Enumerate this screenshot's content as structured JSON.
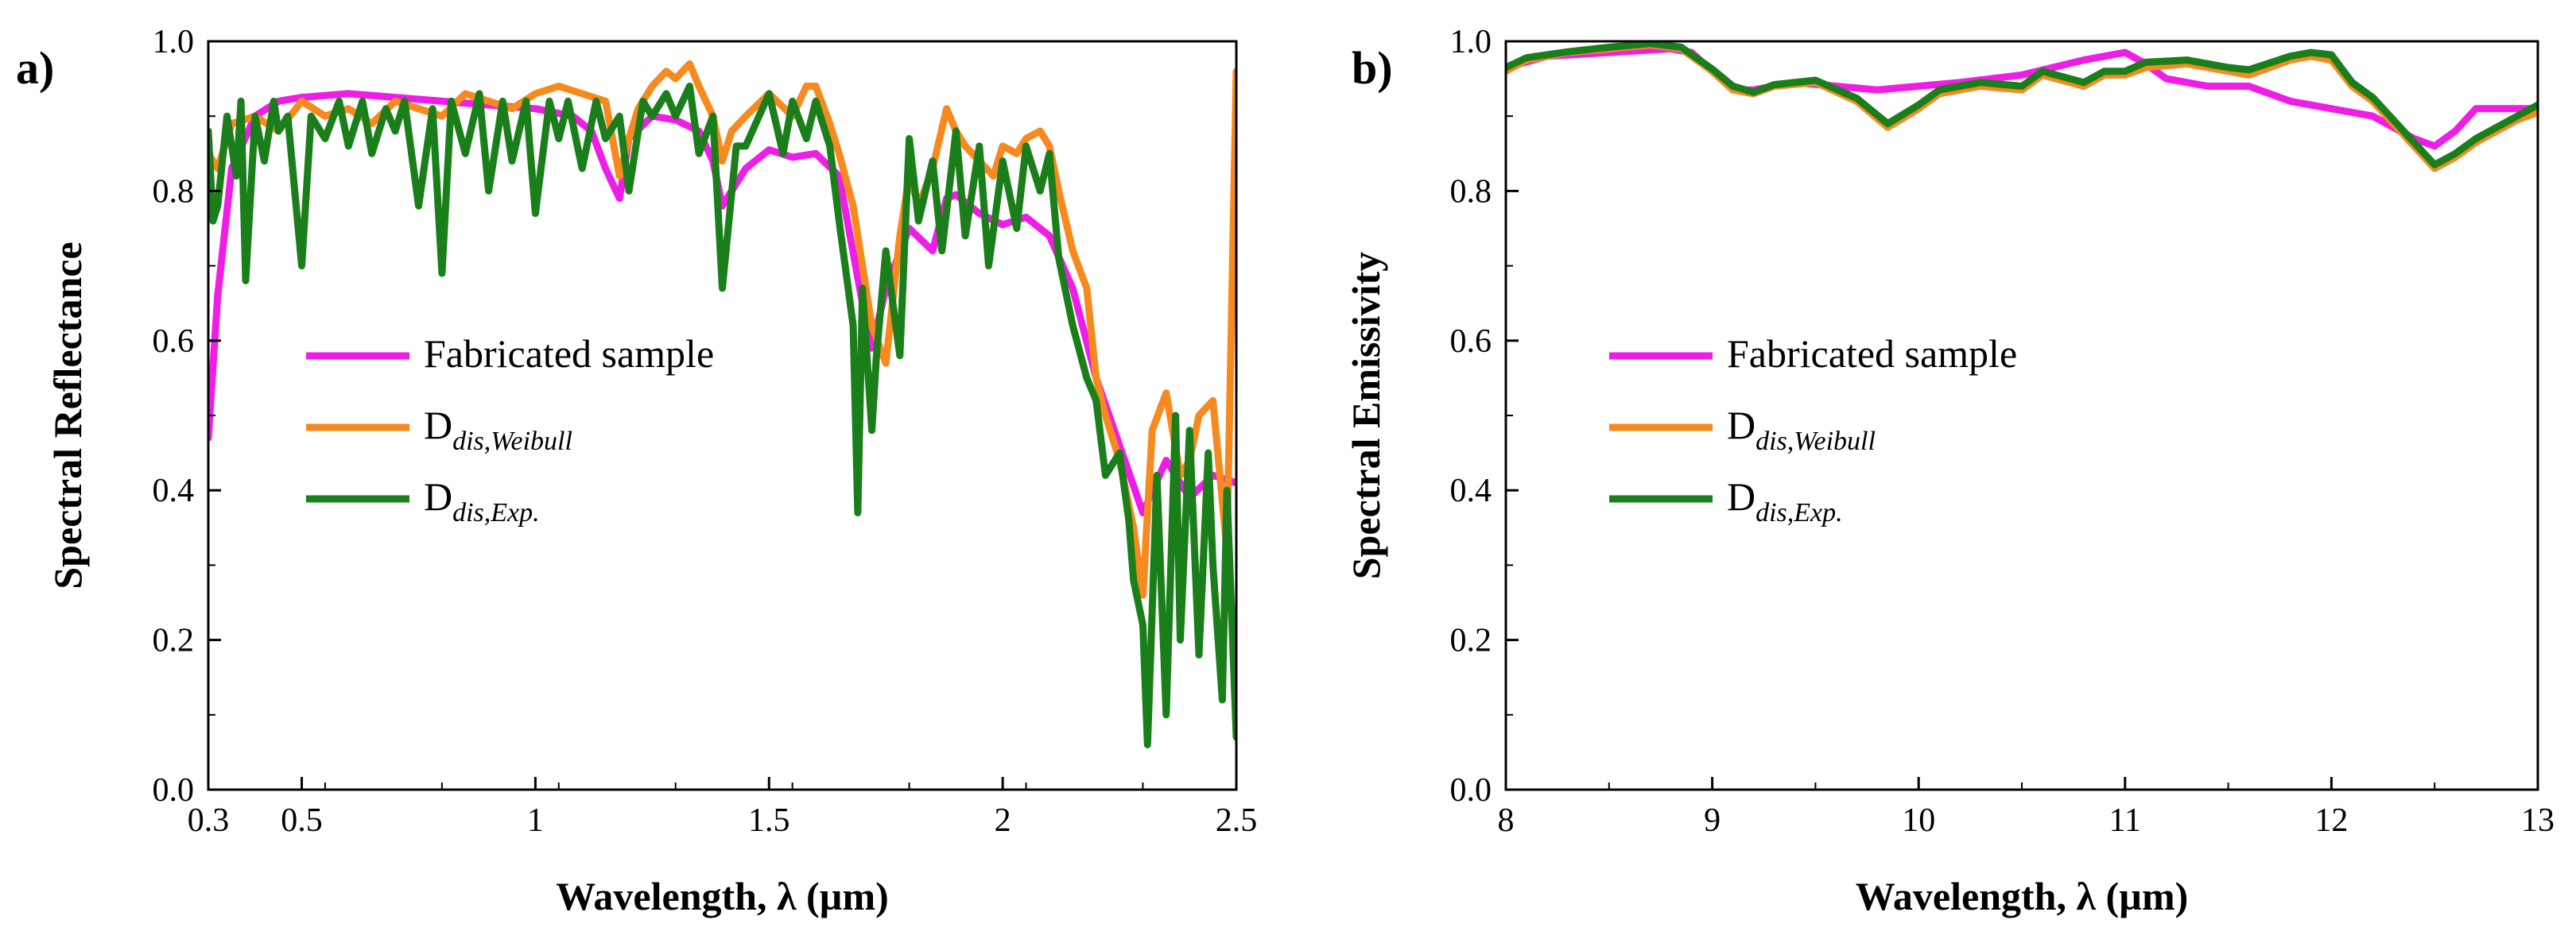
{
  "chart_data": [
    {
      "type": "line",
      "panel_label": "a)",
      "xlabel": "Wavelength, λ (µm)",
      "ylabel": "Spectral Reflectance",
      "xlim": [
        0.3,
        2.5
      ],
      "ylim": [
        0.0,
        1.0
      ],
      "x_ticks": [
        0.3,
        0.5,
        1,
        1.5,
        2,
        2.5
      ],
      "x_tick_labels": [
        "0.3",
        "0.5",
        "1",
        "1.5",
        "2",
        "2.5"
      ],
      "y_ticks": [
        0.0,
        0.2,
        0.4,
        0.6,
        0.8,
        1.0
      ],
      "y_tick_labels": [
        "0.0",
        "0.2",
        "0.4",
        "0.6",
        "0.8",
        "1.0"
      ],
      "legend": {
        "position": "center-left"
      },
      "series": [
        {
          "name": "Fabricated sample",
          "label_main": "Fabricated sample",
          "label_sub": "",
          "color": "#ee1ee6",
          "x": [
            0.3,
            0.32,
            0.35,
            0.4,
            0.45,
            0.5,
            0.6,
            0.7,
            0.8,
            0.9,
            1.0,
            1.08,
            1.12,
            1.15,
            1.18,
            1.2,
            1.25,
            1.3,
            1.35,
            1.38,
            1.4,
            1.45,
            1.5,
            1.55,
            1.6,
            1.65,
            1.7,
            1.72,
            1.75,
            1.8,
            1.85,
            1.88,
            1.9,
            1.95,
            2.0,
            2.05,
            2.1,
            2.15,
            2.2,
            2.25,
            2.3,
            2.35,
            2.4,
            2.45,
            2.5
          ],
          "values": [
            0.47,
            0.66,
            0.83,
            0.9,
            0.92,
            0.925,
            0.93,
            0.925,
            0.92,
            0.915,
            0.91,
            0.9,
            0.88,
            0.83,
            0.79,
            0.87,
            0.9,
            0.895,
            0.88,
            0.84,
            0.78,
            0.83,
            0.855,
            0.845,
            0.85,
            0.82,
            0.65,
            0.59,
            0.67,
            0.75,
            0.72,
            0.79,
            0.795,
            0.77,
            0.755,
            0.765,
            0.74,
            0.67,
            0.55,
            0.46,
            0.37,
            0.44,
            0.39,
            0.42,
            0.41
          ]
        },
        {
          "name": "D_dis,Weibull",
          "label_main": "D",
          "label_sub": "dis,Weibull",
          "color": "#f68a1f",
          "x": [
            0.3,
            0.32,
            0.35,
            0.4,
            0.45,
            0.5,
            0.55,
            0.6,
            0.65,
            0.7,
            0.75,
            0.8,
            0.85,
            0.9,
            0.95,
            1.0,
            1.05,
            1.1,
            1.15,
            1.18,
            1.2,
            1.22,
            1.25,
            1.28,
            1.3,
            1.33,
            1.35,
            1.38,
            1.4,
            1.42,
            1.45,
            1.5,
            1.55,
            1.58,
            1.6,
            1.63,
            1.65,
            1.68,
            1.7,
            1.72,
            1.75,
            1.78,
            1.8,
            1.82,
            1.85,
            1.88,
            1.9,
            1.92,
            1.95,
            1.98,
            2.0,
            2.03,
            2.05,
            2.08,
            2.1,
            2.12,
            2.15,
            2.18,
            2.2,
            2.22,
            2.25,
            2.28,
            2.3,
            2.32,
            2.35,
            2.38,
            2.4,
            2.42,
            2.45,
            2.48,
            2.5
          ],
          "values": [
            0.85,
            0.83,
            0.89,
            0.9,
            0.88,
            0.92,
            0.9,
            0.91,
            0.89,
            0.92,
            0.91,
            0.9,
            0.93,
            0.92,
            0.91,
            0.93,
            0.94,
            0.93,
            0.92,
            0.82,
            0.87,
            0.91,
            0.94,
            0.96,
            0.95,
            0.97,
            0.94,
            0.9,
            0.84,
            0.88,
            0.9,
            0.93,
            0.9,
            0.94,
            0.94,
            0.89,
            0.85,
            0.78,
            0.7,
            0.62,
            0.57,
            0.74,
            0.82,
            0.78,
            0.83,
            0.91,
            0.88,
            0.86,
            0.84,
            0.82,
            0.86,
            0.85,
            0.87,
            0.88,
            0.86,
            0.8,
            0.72,
            0.67,
            0.55,
            0.5,
            0.44,
            0.35,
            0.26,
            0.48,
            0.53,
            0.42,
            0.44,
            0.5,
            0.52,
            0.32,
            0.96
          ]
        },
        {
          "name": "D_dis,Exp.",
          "label_main": "D",
          "label_sub": "dis,Exp.",
          "color": "#1a7f1a",
          "x": [
            0.3,
            0.31,
            0.32,
            0.34,
            0.36,
            0.37,
            0.38,
            0.4,
            0.42,
            0.44,
            0.45,
            0.47,
            0.5,
            0.52,
            0.55,
            0.58,
            0.6,
            0.63,
            0.65,
            0.68,
            0.7,
            0.72,
            0.75,
            0.78,
            0.8,
            0.82,
            0.85,
            0.88,
            0.9,
            0.93,
            0.95,
            0.98,
            1.0,
            1.03,
            1.05,
            1.07,
            1.1,
            1.13,
            1.15,
            1.18,
            1.2,
            1.23,
            1.25,
            1.28,
            1.3,
            1.33,
            1.35,
            1.38,
            1.4,
            1.43,
            1.45,
            1.5,
            1.53,
            1.55,
            1.58,
            1.6,
            1.63,
            1.65,
            1.68,
            1.69,
            1.7,
            1.72,
            1.73,
            1.75,
            1.78,
            1.8,
            1.82,
            1.85,
            1.87,
            1.9,
            1.92,
            1.95,
            1.97,
            2.0,
            2.03,
            2.05,
            2.08,
            2.1,
            2.12,
            2.15,
            2.18,
            2.2,
            2.22,
            2.25,
            2.27,
            2.28,
            2.3,
            2.31,
            2.33,
            2.35,
            2.37,
            2.38,
            2.4,
            2.42,
            2.44,
            2.45,
            2.47,
            2.48,
            2.5
          ],
          "values": [
            0.88,
            0.76,
            0.78,
            0.9,
            0.82,
            0.92,
            0.68,
            0.9,
            0.84,
            0.92,
            0.88,
            0.9,
            0.7,
            0.9,
            0.87,
            0.92,
            0.86,
            0.92,
            0.85,
            0.91,
            0.88,
            0.92,
            0.78,
            0.91,
            0.69,
            0.92,
            0.85,
            0.93,
            0.8,
            0.92,
            0.84,
            0.92,
            0.77,
            0.92,
            0.87,
            0.92,
            0.83,
            0.92,
            0.87,
            0.9,
            0.8,
            0.92,
            0.9,
            0.93,
            0.9,
            0.94,
            0.85,
            0.9,
            0.67,
            0.86,
            0.86,
            0.93,
            0.85,
            0.92,
            0.87,
            0.92,
            0.86,
            0.76,
            0.62,
            0.37,
            0.67,
            0.48,
            0.58,
            0.72,
            0.58,
            0.87,
            0.76,
            0.84,
            0.72,
            0.88,
            0.74,
            0.86,
            0.7,
            0.84,
            0.75,
            0.86,
            0.8,
            0.85,
            0.71,
            0.62,
            0.55,
            0.52,
            0.42,
            0.45,
            0.36,
            0.28,
            0.22,
            0.06,
            0.42,
            0.1,
            0.5,
            0.2,
            0.48,
            0.18,
            0.45,
            0.3,
            0.12,
            0.4,
            0.07
          ]
        }
      ]
    },
    {
      "type": "line",
      "panel_label": "b)",
      "xlabel": "Wavelength, λ (µm)",
      "ylabel": "Spectral Emissivity",
      "xlim": [
        8,
        13
      ],
      "ylim": [
        0.0,
        1.0
      ],
      "x_ticks": [
        8,
        9,
        10,
        11,
        12,
        13
      ],
      "x_tick_labels": [
        "8",
        "9",
        "10",
        "11",
        "12",
        "13"
      ],
      "y_ticks": [
        0.0,
        0.2,
        0.4,
        0.6,
        0.8,
        1.0
      ],
      "y_tick_labels": [
        "0.0",
        "0.2",
        "0.4",
        "0.6",
        "0.8",
        "1.0"
      ],
      "legend": {
        "position": "center-left"
      },
      "series": [
        {
          "name": "Fabricated sample",
          "label_main": "Fabricated sample",
          "label_sub": "",
          "color": "#ee1ee6",
          "x": [
            8.0,
            8.2,
            8.5,
            8.8,
            8.9,
            9.0,
            9.1,
            9.2,
            9.4,
            9.6,
            9.8,
            10.0,
            10.2,
            10.5,
            10.8,
            11.0,
            11.1,
            11.2,
            11.4,
            11.6,
            11.8,
            12.0,
            12.1,
            12.2,
            12.4,
            12.5,
            12.6,
            12.7,
            12.8,
            13.0
          ],
          "values": [
            0.965,
            0.98,
            0.985,
            0.99,
            0.985,
            0.96,
            0.935,
            0.935,
            0.945,
            0.94,
            0.935,
            0.94,
            0.945,
            0.955,
            0.975,
            0.985,
            0.97,
            0.95,
            0.94,
            0.94,
            0.92,
            0.91,
            0.905,
            0.9,
            0.87,
            0.86,
            0.88,
            0.91,
            0.91,
            0.91
          ]
        },
        {
          "name": "D_dis,Weibull",
          "label_main": "D",
          "label_sub": "dis,Weibull",
          "color": "#f68a1f",
          "x": [
            8.0,
            8.1,
            8.3,
            8.5,
            8.7,
            8.85,
            9.0,
            9.1,
            9.2,
            9.3,
            9.5,
            9.7,
            9.85,
            10.0,
            10.1,
            10.3,
            10.5,
            10.6,
            10.8,
            10.9,
            11.0,
            11.1,
            11.3,
            11.5,
            11.6,
            11.8,
            11.9,
            12.0,
            12.1,
            12.2,
            12.3,
            12.4,
            12.5,
            12.6,
            12.7,
            12.8,
            12.9,
            13.0
          ],
          "values": [
            0.96,
            0.975,
            0.985,
            0.99,
            0.995,
            0.99,
            0.96,
            0.935,
            0.93,
            0.94,
            0.945,
            0.92,
            0.885,
            0.91,
            0.93,
            0.94,
            0.935,
            0.955,
            0.94,
            0.955,
            0.955,
            0.965,
            0.97,
            0.96,
            0.955,
            0.975,
            0.98,
            0.975,
            0.94,
            0.92,
            0.89,
            0.86,
            0.83,
            0.845,
            0.865,
            0.88,
            0.895,
            0.905
          ]
        },
        {
          "name": "D_dis,Exp.",
          "label_main": "D",
          "label_sub": "dis,Exp.",
          "color": "#1a7f1a",
          "x": [
            8.0,
            8.1,
            8.3,
            8.5,
            8.7,
            8.85,
            9.0,
            9.1,
            9.2,
            9.3,
            9.5,
            9.7,
            9.85,
            10.0,
            10.1,
            10.3,
            10.5,
            10.6,
            10.8,
            10.9,
            11.0,
            11.1,
            11.3,
            11.5,
            11.6,
            11.8,
            11.9,
            12.0,
            12.1,
            12.2,
            12.3,
            12.4,
            12.5,
            12.6,
            12.7,
            12.8,
            12.9,
            13.0
          ],
          "values": [
            0.965,
            0.978,
            0.986,
            0.992,
            0.997,
            0.992,
            0.963,
            0.94,
            0.932,
            0.942,
            0.948,
            0.924,
            0.89,
            0.915,
            0.935,
            0.945,
            0.94,
            0.96,
            0.945,
            0.96,
            0.96,
            0.972,
            0.975,
            0.965,
            0.962,
            0.98,
            0.985,
            0.982,
            0.945,
            0.925,
            0.895,
            0.865,
            0.835,
            0.85,
            0.87,
            0.885,
            0.9,
            0.915
          ]
        }
      ]
    }
  ]
}
